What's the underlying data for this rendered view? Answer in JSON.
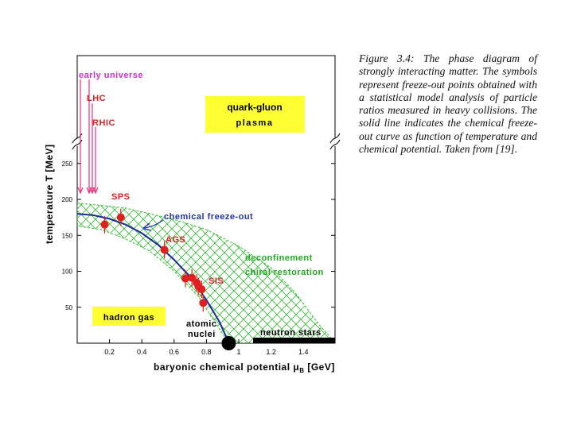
{
  "caption": {
    "figure_label": "Figure 3.4:",
    "text": "The phase diagram of strongly interacting matter. The symbols represent freeze-out points obtained with a statistical model analysis of particle ratios measured in heavy collisions. The solid line indicates the chemical freeze-out curve as function of temperature and chemical potential. Taken from [19]."
  },
  "colors": {
    "region_fill": "#ffff33",
    "band": "#33bb33",
    "curve": "#1a2a99",
    "points": "#e02020",
    "arrows": "#e8307a",
    "magenta_text": "#cc33cc",
    "red_text": "#dd2222",
    "blue_text": "#2233aa",
    "green_text": "#22aa22"
  },
  "chart_data": {
    "type": "scatter",
    "xlabel": "baryonic chemical potential μ",
    "xlabel_sub": "B",
    "xlabel_unit": " [GeV]",
    "ylabel": "temperature T [MeV]",
    "xlim": [
      0,
      1.6
    ],
    "ylim": [
      0,
      260
    ],
    "x_ticks": [
      "0.2",
      "0.4",
      "0.6",
      "0.8",
      "1",
      "1.2",
      "1.4"
    ],
    "x_tick_values": [
      0.2,
      0.4,
      0.6,
      0.8,
      1.0,
      1.2,
      1.4
    ],
    "y_ticks": [
      "50",
      "100",
      "150",
      "200",
      "250"
    ],
    "y_tick_values": [
      50,
      100,
      150,
      200,
      250
    ],
    "freeze_out_curve": {
      "x": [
        0,
        0.1,
        0.2,
        0.3,
        0.4,
        0.5,
        0.6,
        0.7,
        0.8,
        0.88,
        0.94
      ],
      "y": [
        180,
        178,
        173,
        165,
        153,
        137,
        116,
        92,
        60,
        30,
        0
      ]
    },
    "freeze_out_points": {
      "x": [
        0.17,
        0.27,
        0.54,
        0.67,
        0.71,
        0.74,
        0.75,
        0.77,
        0.78
      ],
      "y": [
        165,
        175,
        130,
        90,
        91,
        84,
        79,
        75,
        56
      ]
    },
    "annotations": {
      "early_universe": "early universe",
      "lhc": "LHC",
      "rhic": "RHIC",
      "qgp_line1": "quark-gluon",
      "qgp_line2": "plasma",
      "sps": "SPS",
      "ags": "AGS",
      "sis": "SIS",
      "chemical_freeze_out": "chemical freeze-out",
      "deconfinement": "deconfinement",
      "chiral_restoration": "chiral restoration",
      "hadron_gas": "hadron gas",
      "atomic_nuclei_1": "atomic",
      "atomic_nuclei_2": "nuclei",
      "neutron_stars": "neutron stars"
    }
  }
}
